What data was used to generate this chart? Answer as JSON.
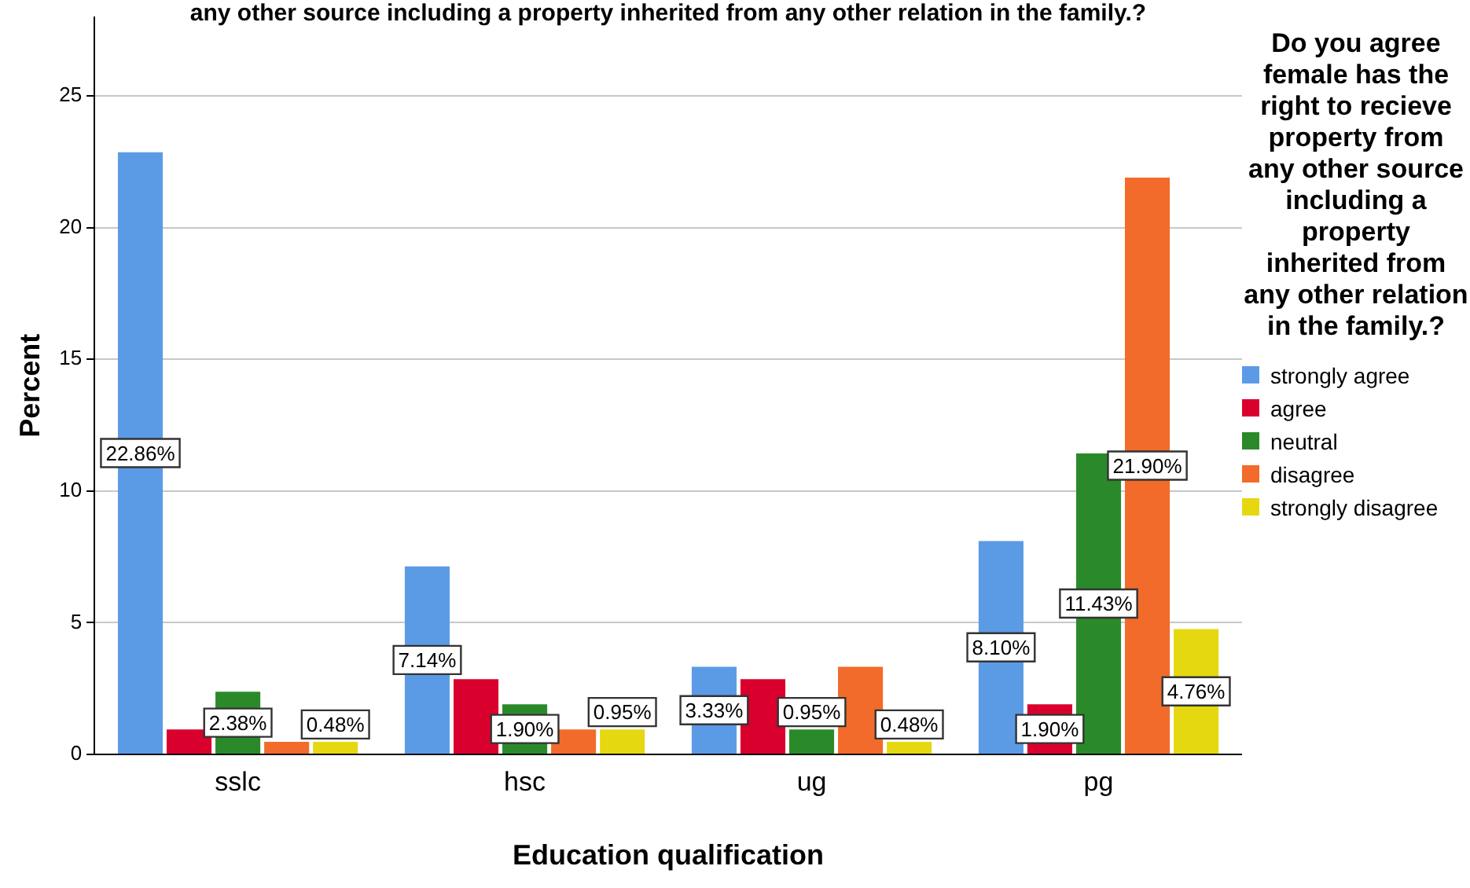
{
  "chart_data": {
    "type": "bar",
    "title": "any other source including a property inherited from any other relation in the family.?",
    "xlabel": "Education qualification",
    "ylabel": "Percent",
    "legend_title": "Do you agree female has the right to recieve property from any other source including a property inherited from any other relation in the family.?",
    "categories": [
      "sslc",
      "hsc",
      "ug",
      "pg"
    ],
    "series": [
      {
        "name": "strongly agree",
        "color": "#5b9be6",
        "values": [
          22.86,
          7.14,
          3.33,
          8.1
        ],
        "value_labels": [
          "22.86%",
          "7.14%",
          "3.33%",
          "8.10%"
        ]
      },
      {
        "name": "agree",
        "color": "#d9002e",
        "values": [
          0.95,
          2.86,
          2.86,
          1.9
        ],
        "value_labels": [
          null,
          null,
          null,
          "1.90%"
        ]
      },
      {
        "name": "neutral",
        "color": "#2a8a2a",
        "values": [
          2.38,
          1.9,
          0.95,
          11.43
        ],
        "value_labels": [
          "2.38%",
          "1.90%",
          "0.95%",
          "11.43%"
        ]
      },
      {
        "name": "disagree",
        "color": "#f26b2a",
        "values": [
          0.48,
          0.95,
          3.33,
          21.9
        ],
        "value_labels": [
          null,
          null,
          null,
          "21.90%"
        ]
      },
      {
        "name": "strongly disagree",
        "color": "#e5d811",
        "values": [
          0.48,
          0.95,
          0.48,
          4.76
        ],
        "value_labels": [
          "0.48%",
          "0.95%",
          "0.48%",
          "4.76%"
        ]
      }
    ],
    "ylim": [
      0,
      28
    ],
    "yticks": [
      0,
      5,
      10,
      15,
      20,
      25
    ],
    "grid": "y",
    "legend": "right"
  }
}
